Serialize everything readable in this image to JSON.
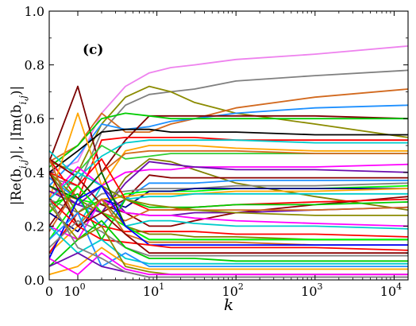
{
  "chart_data": {
    "type": "line",
    "panel_label": "(c)",
    "xlabel": "k",
    "ylabel": "|Re(b_{i,j})|, |Im(b_{i,j})|",
    "x_scale": "symlog",
    "xlim": [
      0,
      15000
    ],
    "ylim": [
      0,
      1.0
    ],
    "grid": false,
    "legend": "none",
    "x_ticks": [
      {
        "value": 0,
        "label": "0"
      },
      {
        "value": 1,
        "label": "10",
        "exp": "0"
      },
      {
        "value": 10,
        "label": "10",
        "exp": "1"
      },
      {
        "value": 100,
        "label": "10",
        "exp": "2"
      },
      {
        "value": 1000,
        "label": "10",
        "exp": "3"
      },
      {
        "value": 10000,
        "label": "10",
        "exp": "4"
      }
    ],
    "y_ticks": [
      {
        "value": 0.0,
        "label": "0.0"
      },
      {
        "value": 0.2,
        "label": "0.2"
      },
      {
        "value": 0.4,
        "label": "0.4"
      },
      {
        "value": 0.6,
        "label": "0.6"
      },
      {
        "value": 0.8,
        "label": "0.8"
      },
      {
        "value": 1.0,
        "label": "1.0"
      }
    ],
    "x": [
      0,
      1,
      2,
      4,
      8,
      15,
      30,
      100,
      1000,
      15000
    ],
    "series": [
      {
        "color": "#ee82ee",
        "values": [
          0.4,
          0.44,
          0.62,
          0.72,
          0.77,
          0.79,
          0.8,
          0.82,
          0.84,
          0.87
        ]
      },
      {
        "color": "#808080",
        "values": [
          0.38,
          0.35,
          0.55,
          0.65,
          0.69,
          0.7,
          0.71,
          0.74,
          0.76,
          0.78
        ]
      },
      {
        "color": "#8b8b00",
        "values": [
          0.44,
          0.4,
          0.58,
          0.68,
          0.72,
          0.7,
          0.66,
          0.62,
          0.58,
          0.53
        ]
      },
      {
        "color": "#d2691e",
        "values": [
          0.44,
          0.5,
          0.62,
          0.55,
          0.55,
          0.58,
          0.6,
          0.64,
          0.68,
          0.71
        ]
      },
      {
        "color": "#1e90ff",
        "values": [
          0.35,
          0.46,
          0.58,
          0.56,
          0.57,
          0.59,
          0.6,
          0.62,
          0.64,
          0.65
        ]
      },
      {
        "color": "#7b0000",
        "values": [
          0.44,
          0.72,
          0.4,
          0.52,
          0.61,
          0.61,
          0.61,
          0.61,
          0.61,
          0.6
        ]
      },
      {
        "color": "#00cc00",
        "values": [
          0.42,
          0.5,
          0.6,
          0.62,
          0.61,
          0.6,
          0.6,
          0.6,
          0.6,
          0.6
        ]
      },
      {
        "color": "#000000",
        "values": [
          0.4,
          0.48,
          0.55,
          0.56,
          0.56,
          0.55,
          0.55,
          0.55,
          0.54,
          0.54
        ]
      },
      {
        "color": "#ff0000",
        "values": [
          0.45,
          0.3,
          0.52,
          0.53,
          0.53,
          0.53,
          0.53,
          0.52,
          0.52,
          0.52
        ]
      },
      {
        "color": "#00cccc",
        "values": [
          0.48,
          0.38,
          0.46,
          0.51,
          0.52,
          0.52,
          0.52,
          0.52,
          0.51,
          0.51
        ]
      },
      {
        "color": "#ffa500",
        "values": [
          0.3,
          0.62,
          0.35,
          0.48,
          0.5,
          0.5,
          0.5,
          0.49,
          0.48,
          0.48
        ]
      },
      {
        "color": "#32cd32",
        "values": [
          0.25,
          0.4,
          0.5,
          0.45,
          0.46,
          0.47,
          0.47,
          0.47,
          0.47,
          0.47
        ]
      },
      {
        "color": "#d2691e",
        "values": [
          0.33,
          0.3,
          0.4,
          0.47,
          0.48,
          0.48,
          0.48,
          0.48,
          0.47,
          0.47
        ]
      },
      {
        "color": "#808000",
        "values": [
          0.4,
          0.3,
          0.25,
          0.38,
          0.45,
          0.44,
          0.41,
          0.36,
          0.31,
          0.26
        ]
      },
      {
        "color": "#ff00ff",
        "values": [
          0.3,
          0.42,
          0.35,
          0.4,
          0.41,
          0.41,
          0.42,
          0.42,
          0.42,
          0.43
        ]
      },
      {
        "color": "#6a0dad",
        "values": [
          0.35,
          0.28,
          0.25,
          0.36,
          0.44,
          0.43,
          0.42,
          0.41,
          0.41,
          0.4
        ]
      },
      {
        "color": "#8b0000",
        "values": [
          0.2,
          0.35,
          0.25,
          0.3,
          0.39,
          0.38,
          0.38,
          0.38,
          0.38,
          0.38
        ]
      },
      {
        "color": "#1e90ff",
        "values": [
          0.38,
          0.3,
          0.2,
          0.3,
          0.36,
          0.36,
          0.36,
          0.37,
          0.37,
          0.37
        ]
      },
      {
        "color": "#808080",
        "values": [
          0.3,
          0.25,
          0.32,
          0.33,
          0.34,
          0.34,
          0.34,
          0.35,
          0.35,
          0.36
        ]
      },
      {
        "color": "#00ff00",
        "values": [
          0.15,
          0.3,
          0.28,
          0.32,
          0.33,
          0.33,
          0.33,
          0.34,
          0.34,
          0.35
        ]
      },
      {
        "color": "#00008b",
        "values": [
          0.25,
          0.18,
          0.3,
          0.27,
          0.33,
          0.33,
          0.34,
          0.34,
          0.34,
          0.34
        ]
      },
      {
        "color": "#ffa500",
        "values": [
          0.1,
          0.2,
          0.3,
          0.31,
          0.32,
          0.32,
          0.32,
          0.33,
          0.33,
          0.34
        ]
      },
      {
        "color": "#00cccc",
        "values": [
          0.45,
          0.2,
          0.35,
          0.3,
          0.31,
          0.31,
          0.32,
          0.32,
          0.32,
          0.32
        ]
      },
      {
        "color": "#8b0000",
        "values": [
          0.45,
          0.38,
          0.28,
          0.25,
          0.2,
          0.2,
          0.22,
          0.25,
          0.28,
          0.31
        ]
      },
      {
        "color": "#ff0000",
        "values": [
          0.4,
          0.35,
          0.45,
          0.3,
          0.26,
          0.26,
          0.27,
          0.28,
          0.29,
          0.3
        ]
      },
      {
        "color": "#6a0dad",
        "values": [
          0.33,
          0.28,
          0.35,
          0.25,
          0.24,
          0.24,
          0.25,
          0.25,
          0.26,
          0.27
        ]
      },
      {
        "color": "#00cc00",
        "values": [
          0.28,
          0.32,
          0.15,
          0.3,
          0.27,
          0.27,
          0.27,
          0.28,
          0.28,
          0.29
        ]
      },
      {
        "color": "#d2691e",
        "values": [
          0.18,
          0.35,
          0.25,
          0.22,
          0.26,
          0.26,
          0.26,
          0.26,
          0.26,
          0.27
        ]
      },
      {
        "color": "#8b8b00",
        "values": [
          0.35,
          0.3,
          0.35,
          0.3,
          0.28,
          0.27,
          0.26,
          0.25,
          0.24,
          0.24
        ]
      },
      {
        "color": "#00cccc",
        "values": [
          0.3,
          0.4,
          0.35,
          0.2,
          0.22,
          0.22,
          0.21,
          0.2,
          0.2,
          0.19
        ]
      },
      {
        "color": "#ff00ff",
        "values": [
          0.2,
          0.15,
          0.3,
          0.25,
          0.24,
          0.24,
          0.23,
          0.22,
          0.21,
          0.2
        ]
      },
      {
        "color": "#ff0000",
        "values": [
          0.1,
          0.25,
          0.2,
          0.18,
          0.18,
          0.18,
          0.18,
          0.17,
          0.17,
          0.16
        ]
      },
      {
        "color": "#808000",
        "values": [
          0.4,
          0.25,
          0.3,
          0.2,
          0.17,
          0.17,
          0.16,
          0.16,
          0.15,
          0.15
        ]
      },
      {
        "color": "#006400",
        "values": [
          0.35,
          0.3,
          0.4,
          0.2,
          0.15,
          0.15,
          0.15,
          0.15,
          0.15,
          0.15
        ]
      },
      {
        "color": "#00ff00",
        "values": [
          0.25,
          0.35,
          0.25,
          0.2,
          0.15,
          0.15,
          0.15,
          0.15,
          0.15,
          0.15
        ]
      },
      {
        "color": "#d2691e",
        "values": [
          0.45,
          0.2,
          0.3,
          0.17,
          0.14,
          0.14,
          0.14,
          0.14,
          0.13,
          0.13
        ]
      },
      {
        "color": "#0000ff",
        "values": [
          0.08,
          0.3,
          0.35,
          0.2,
          0.13,
          0.13,
          0.13,
          0.13,
          0.13,
          0.13
        ]
      },
      {
        "color": "#ff0000",
        "values": [
          0.3,
          0.2,
          0.15,
          0.14,
          0.13,
          0.12,
          0.12,
          0.12,
          0.12,
          0.11
        ]
      },
      {
        "color": "#8b0000",
        "values": [
          0.4,
          0.2,
          0.25,
          0.17,
          0.1,
          0.1,
          0.1,
          0.1,
          0.1,
          0.1
        ]
      },
      {
        "color": "#808080",
        "values": [
          0.12,
          0.22,
          0.18,
          0.12,
          0.09,
          0.09,
          0.09,
          0.09,
          0.09,
          0.09
        ]
      },
      {
        "color": "#00cc00",
        "values": [
          0.05,
          0.15,
          0.22,
          0.12,
          0.08,
          0.08,
          0.08,
          0.07,
          0.07,
          0.07
        ]
      },
      {
        "color": "#00cccc",
        "values": [
          0.2,
          0.1,
          0.15,
          0.08,
          0.06,
          0.06,
          0.06,
          0.06,
          0.06,
          0.06
        ]
      },
      {
        "color": "#1e90ff",
        "values": [
          0.15,
          0.25,
          0.05,
          0.1,
          0.05,
          0.05,
          0.05,
          0.05,
          0.05,
          0.05
        ]
      },
      {
        "color": "#ffa500",
        "values": [
          0.02,
          0.05,
          0.12,
          0.06,
          0.04,
          0.04,
          0.04,
          0.04,
          0.04,
          0.04
        ]
      },
      {
        "color": "#8b8b00",
        "values": [
          0.28,
          0.15,
          0.2,
          0.05,
          0.03,
          0.02,
          0.02,
          0.02,
          0.02,
          0.02
        ]
      },
      {
        "color": "#ff00ff",
        "values": [
          0.08,
          0.02,
          0.1,
          0.04,
          0.02,
          0.02,
          0.02,
          0.02,
          0.02,
          0.02
        ]
      },
      {
        "color": "#6a0dad",
        "values": [
          0.05,
          0.1,
          0.05,
          0.03,
          0.01,
          0.01,
          0.01,
          0.01,
          0.01,
          0.01
        ]
      },
      {
        "color": "#808080",
        "values": [
          0.3,
          0.12,
          0.08,
          0.03,
          0.01,
          0.01,
          0.01,
          0.01,
          0.01,
          0.01
        ]
      }
    ]
  }
}
